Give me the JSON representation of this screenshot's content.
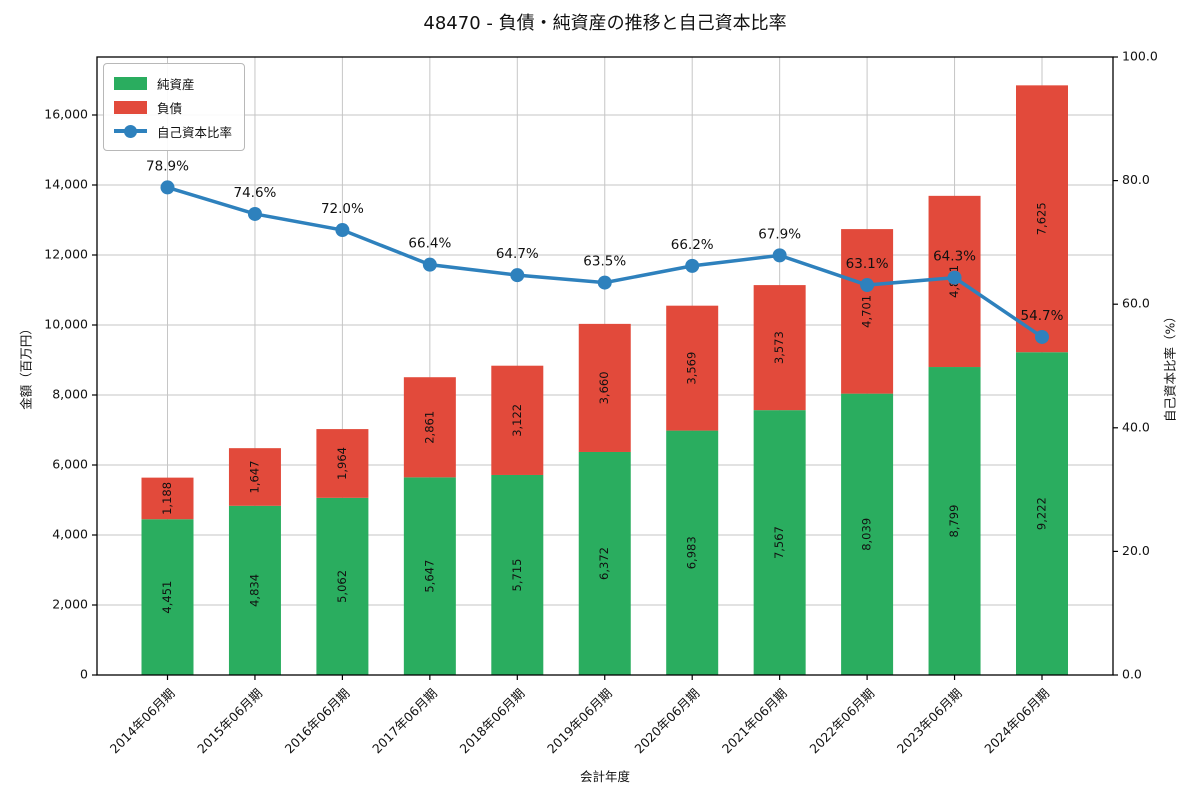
{
  "chart_data": {
    "type": "bar",
    "subtype": "stacked-bars-with-line",
    "title": "48470 - 負債・純資産の推移と自己資本比率",
    "xlabel": "会計年度",
    "ylabel_left": "金額（百万円）",
    "ylabel_right": "自己資本比率（%）",
    "categories": [
      "2014年06月期",
      "2015年06月期",
      "2016年06月期",
      "2017年06月期",
      "2018年06月期",
      "2019年06月期",
      "2020年06月期",
      "2021年06月期",
      "2022年06月期",
      "2023年06月期",
      "2024年06月期"
    ],
    "series": [
      {
        "name": "純資産",
        "type": "bar",
        "stack": "total",
        "values": [
          4451,
          4834,
          5062,
          5647,
          5715,
          6372,
          6983,
          7567,
          8039,
          8799,
          9222
        ]
      },
      {
        "name": "負債",
        "type": "bar",
        "stack": "total",
        "values": [
          1188,
          1647,
          1964,
          2861,
          3122,
          3660,
          3569,
          3573,
          4701,
          4891,
          7625
        ]
      }
    ],
    "ratio_series": {
      "name": "自己資本比率",
      "unit": "%",
      "values": [
        78.9,
        74.6,
        72.0,
        66.4,
        64.7,
        63.5,
        66.2,
        67.9,
        63.1,
        64.3,
        54.7
      ]
    },
    "y_left_axis": {
      "min": 0,
      "max": 17657,
      "tick_step": 2000,
      "tick_labels": [
        "0",
        "2,000",
        "4,000",
        "6,000",
        "8,000",
        "10,000",
        "12,000",
        "14,000",
        "16,000"
      ]
    },
    "y_right_axis": {
      "min": 0,
      "max": 100,
      "tick_step": 20,
      "tick_labels": [
        "0.0",
        "20.0",
        "40.0",
        "60.0",
        "80.0",
        "100.0"
      ]
    },
    "grid": true,
    "legend_position": "upper-left",
    "colors": {
      "equity_bar": "#2aad5f",
      "debt_bar": "#e24a3b",
      "ratio_line": "#2e81bd",
      "grid_line": "#c6c6c6",
      "axis": "#000000",
      "bar_label_text": "#111111"
    }
  }
}
